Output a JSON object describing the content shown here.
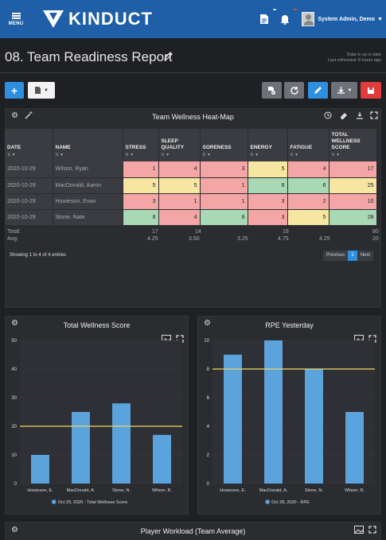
{
  "nav": {
    "menu_label": "MENU",
    "brand": "KINDUCT",
    "badge_doc": "",
    "badge_notif": "",
    "user_name": "System Admin, Demo"
  },
  "page": {
    "title": "08. Team Readiness Report",
    "status_line1": "Data is up to date",
    "status_line2": "Last refreshed: 8 hours ago"
  },
  "heatmap": {
    "title": "Team Wellness Heat-Map",
    "columns": [
      "DATE",
      "NAME",
      "STRESS",
      "SLEEP QUALITY",
      "SORENESS",
      "ENERGY",
      "FATIGUE",
      "TOTAL WELLNESS SCORE"
    ],
    "rows": [
      {
        "date": "2020-10-29",
        "name": "Wilson, Ryan",
        "stress": "1",
        "sleep": "4",
        "soreness": "3",
        "energy": "5",
        "fatigue": "4",
        "total": "17"
      },
      {
        "date": "2020-10-29",
        "name": "MacDonald, Aaron",
        "stress": "5",
        "sleep": "5",
        "soreness": "1",
        "energy": "8",
        "fatigue": "6",
        "total": "25"
      },
      {
        "date": "2020-10-29",
        "name": "Howieson, Evan",
        "stress": "3",
        "sleep": "1",
        "soreness": "1",
        "energy": "3",
        "fatigue": "2",
        "total": "10"
      },
      {
        "date": "2020-10-29",
        "name": "Stone, Nate",
        "stress": "8",
        "sleep": "4",
        "soreness": "8",
        "energy": "3",
        "fatigue": "5",
        "total": "28"
      }
    ],
    "total_label": "Total:",
    "avg_label": "Avg:",
    "totals": {
      "stress": "17",
      "sleep": "14",
      "soreness": "",
      "energy": "19",
      "fatigue": "",
      "total": "80"
    },
    "avgs": {
      "stress": "4.25",
      "sleep": "3.50",
      "soreness": "3.25",
      "energy": "4.75",
      "fatigue": "4.25",
      "total": "20"
    },
    "entries_text": "Showing 1 to 4 of 4 entries",
    "pager": {
      "prev": "Previous",
      "page": "1",
      "next": "Next"
    }
  },
  "chart_data": [
    {
      "type": "bar",
      "title": "Total Wellness Score",
      "categories": [
        "Howieson, E.",
        "MacDonald, A.",
        "Stone, N.",
        "Wilson, R."
      ],
      "series": [
        {
          "name": "Oct 29, 2020 - Total Wellness Score",
          "values": [
            10,
            25,
            28,
            17
          ],
          "color": "#5ba3dc"
        }
      ],
      "reference_line": 20,
      "ylim": [
        0,
        50
      ],
      "yticks": [
        0,
        10,
        20,
        30,
        40,
        50
      ],
      "reference_color": "#f0d564"
    },
    {
      "type": "bar",
      "title": "RPE Yesterday",
      "categories": [
        "Howieson, E.",
        "MacDonald, A.",
        "Stone, N.",
        "Wilson, R."
      ],
      "series": [
        {
          "name": "Oct 28, 2020 - RPE",
          "values": [
            9,
            10,
            8,
            5
          ],
          "color": "#5ba3dc"
        }
      ],
      "reference_line": 8,
      "ylim": [
        0,
        10
      ],
      "yticks": [
        0,
        2,
        4,
        6,
        8,
        10
      ],
      "reference_color": "#f0d564"
    }
  ],
  "workload": {
    "title": "Player Workload (Team Average)"
  }
}
